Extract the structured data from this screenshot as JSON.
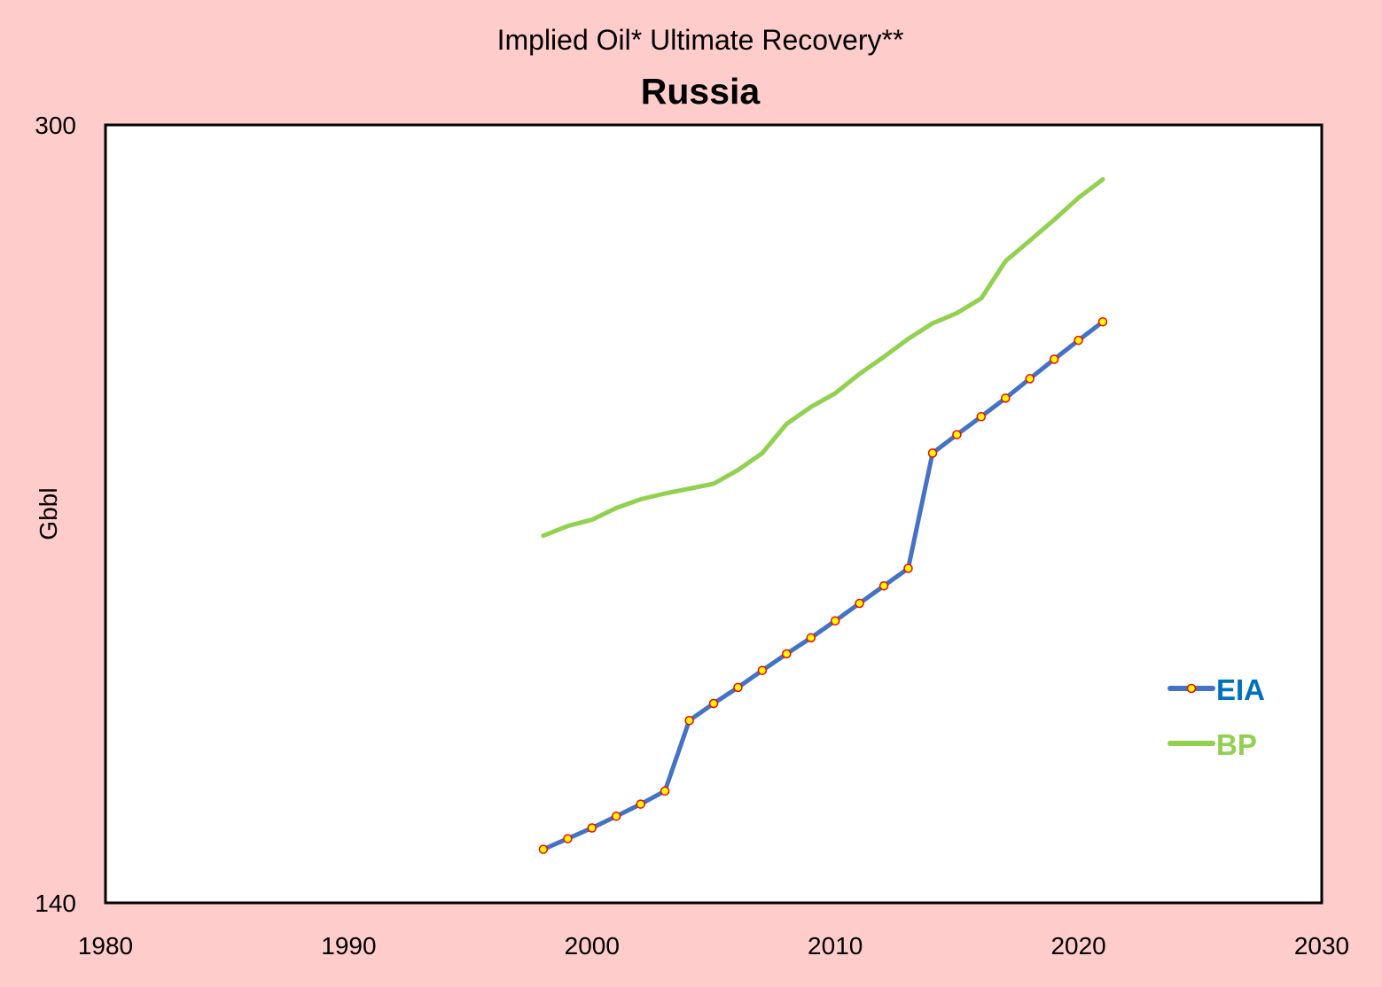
{
  "colors": {
    "page_background": "#ffcccc",
    "plot_background": "#ffffff",
    "eia_line": "#4472c4",
    "eia_marker_fill": "#ffff00",
    "eia_marker_stroke": "#ff0000",
    "eia_legend_text": "#0070c0",
    "bp_line": "#92d050",
    "bp_legend_text": "#92d050"
  },
  "chart_data": {
    "type": "line",
    "title": "Implied Oil* Ultimate Recovery**",
    "subtitle": "Russia",
    "xlabel": "",
    "ylabel": "Gbbl",
    "xlim": [
      1980,
      2030
    ],
    "ylim": [
      140,
      300
    ],
    "x_ticks": [
      "1980",
      "1990",
      "2000",
      "2010",
      "2020",
      "2030"
    ],
    "y_ticks": [
      "140",
      "300"
    ],
    "grid": false,
    "legend_position": "right",
    "series": [
      {
        "name": "EIA",
        "markers": true,
        "x": [
          1998,
          1999,
          2000,
          2001,
          2002,
          2003,
          2004,
          2005,
          2006,
          2007,
          2008,
          2009,
          2010,
          2011,
          2012,
          2013,
          2014,
          2015,
          2016,
          2017,
          2018,
          2019,
          2020,
          2021
        ],
        "y": [
          151.0,
          153.2,
          155.4,
          157.8,
          160.3,
          163.0,
          177.5,
          181.0,
          184.3,
          187.8,
          191.2,
          194.5,
          198.0,
          201.6,
          205.2,
          208.8,
          232.5,
          236.3,
          240.0,
          243.8,
          247.8,
          251.8,
          255.7,
          259.5
        ]
      },
      {
        "name": "BP",
        "markers": false,
        "x": [
          1998,
          1999,
          2000,
          2001,
          2002,
          2003,
          2004,
          2005,
          2006,
          2007,
          2008,
          2009,
          2010,
          2011,
          2012,
          2013,
          2014,
          2015,
          2016,
          2017,
          2018,
          2019,
          2020,
          2021
        ],
        "y": [
          215.5,
          217.5,
          218.8,
          221.2,
          223.0,
          224.2,
          225.2,
          226.2,
          229.0,
          232.5,
          238.5,
          242.0,
          244.8,
          248.8,
          252.3,
          256.0,
          259.2,
          261.3,
          264.3,
          272.0,
          276.2,
          280.5,
          285.0,
          288.8
        ]
      }
    ]
  }
}
